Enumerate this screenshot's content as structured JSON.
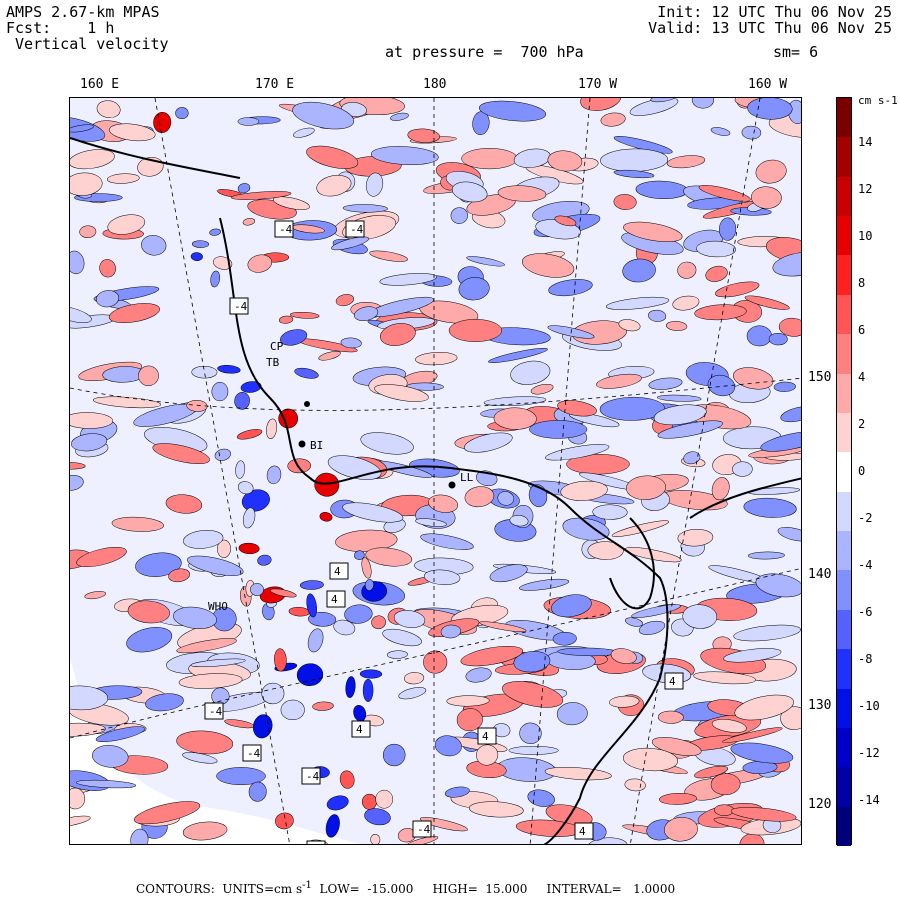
{
  "header": {
    "model": "AMPS 2.67-km MPAS",
    "fcst_label": "Fcst:",
    "fcst_value": "1 h",
    "field": "Vertical velocity",
    "init": "Init: 12 UTC Thu 06 Nov 25",
    "valid": "Valid: 13 UTC Thu 06 Nov 25",
    "pressure": "at pressure =  700 hPa",
    "smoothing": "sm= 6"
  },
  "longitude_labels": [
    "160 E",
    "170 E",
    "180",
    "170 W",
    "160 W"
  ],
  "latitude_labels": [
    "150 W",
    "140 W",
    "130 W",
    "120 W"
  ],
  "colorbar": {
    "unit": "cm s-1",
    "ticks": [
      14,
      12,
      10,
      8,
      6,
      4,
      2,
      0,
      -2,
      -4,
      -6,
      -8,
      -10,
      -12,
      -14
    ],
    "colors": [
      "#7a0000",
      "#a40000",
      "#c80000",
      "#e60000",
      "#ff2020",
      "#ff5555",
      "#ff8080",
      "#ffaaaa",
      "#ffd2d2",
      "#ffffff",
      "#d2d8ff",
      "#aab4ff",
      "#8090ff",
      "#5562ff",
      "#2030ff",
      "#0010e6",
      "#0000c8",
      "#0000a4",
      "#00007a"
    ]
  },
  "stations": [
    "CP",
    "TB",
    "BI",
    "LL",
    "WHO"
  ],
  "contour_labels": [
    "-4",
    "-4",
    "-4",
    "-4",
    "-4",
    "4",
    "4",
    "4",
    "4",
    "4",
    "4",
    "-4",
    "-4",
    "-4"
  ],
  "footer": {
    "contours": "CONTOURS:",
    "units": "UNITS=cm s",
    "units_exp": "-1",
    "low": "LOW=  -15.000",
    "high": "HIGH=  15.000",
    "interval": "INTERVAL=   1.0000"
  }
}
